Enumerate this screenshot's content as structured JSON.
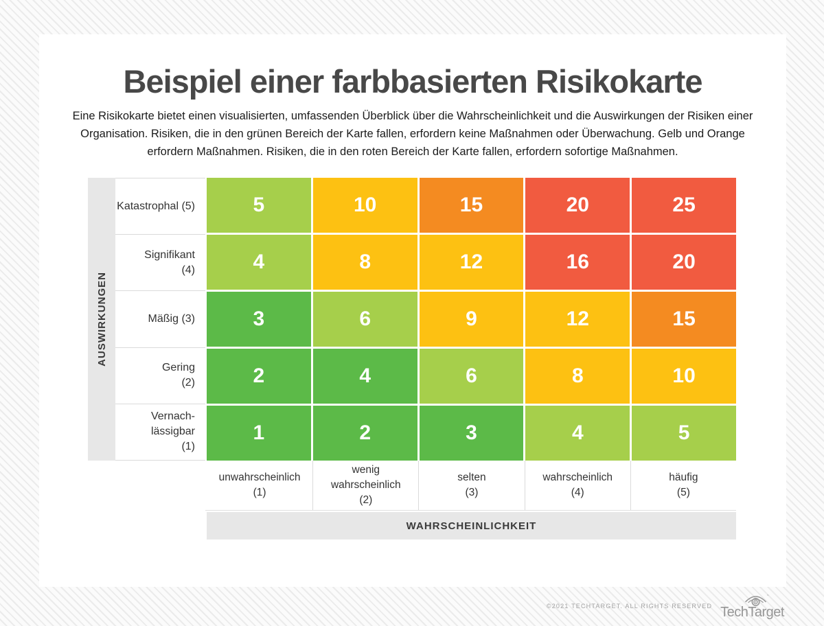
{
  "page": {
    "title": "Beispiel einer farbbasierten Risikokarte",
    "description": "Eine Risikokarte bietet einen visualisierten, umfassenden Überblick über die Wahrscheinlichkeit und die Auswirkungen der Risiken einer Organisation. Risiken, die in den grünen Bereich der Karte fallen, erfordern keine Maßnahmen oder Überwachung. Gelb und Orange erfordern Maßnahmen. Risiken, die in den roten Bereich der Karte fallen, erfordern sofortige Maßnahmen."
  },
  "chart_data": {
    "type": "heatmap",
    "title": "Beispiel einer farbbasierten Risikokarte",
    "x_axis_label": "WAHRSCHEINLICHKEIT",
    "y_axis_label": "AUSWIRKUNGEN",
    "columns": [
      {
        "label": "unwahrscheinlich (1)",
        "display": "unwahrscheinlich\n(1)"
      },
      {
        "label": "wenig wahrscheinlich (2)",
        "display": "wenig\nwahrscheinlich\n(2)"
      },
      {
        "label": "selten (3)",
        "display": "selten\n(3)"
      },
      {
        "label": "wahrscheinlich (4)",
        "display": "wahrscheinlich\n(4)"
      },
      {
        "label": "häufig (5)",
        "display": "häufig\n(5)"
      }
    ],
    "rows": [
      {
        "label": "Katastrophal (5)",
        "display": "Katastrophal (5)"
      },
      {
        "label": "Signifikant (4)",
        "display": "Signifikant\n(4)"
      },
      {
        "label": "Mäßig (3)",
        "display": "Mäßig (3)"
      },
      {
        "label": "Gering (2)",
        "display": "Gering\n(2)"
      },
      {
        "label": "Vernachlässigbar (1)",
        "display": "Vernach-\nlässigbar\n(1)"
      }
    ],
    "values": [
      [
        5,
        10,
        15,
        20,
        25
      ],
      [
        4,
        8,
        12,
        16,
        20
      ],
      [
        3,
        6,
        9,
        12,
        15
      ],
      [
        2,
        4,
        6,
        8,
        10
      ],
      [
        1,
        2,
        3,
        4,
        5
      ]
    ],
    "cell_colors": [
      [
        "light_green",
        "yellow",
        "orange",
        "red",
        "red"
      ],
      [
        "light_green",
        "yellow",
        "yellow",
        "red",
        "red"
      ],
      [
        "green",
        "light_green",
        "yellow",
        "yellow",
        "orange"
      ],
      [
        "green",
        "green",
        "light_green",
        "yellow",
        "yellow"
      ],
      [
        "green",
        "green",
        "green",
        "light_green",
        "light_green"
      ]
    ],
    "palette": {
      "green": "#5cba48",
      "light_green": "#a6cf4b",
      "yellow": "#fdc112",
      "orange": "#f48b21",
      "red": "#f15b40"
    },
    "layout": {
      "grid": "5x5",
      "legend": "none",
      "value_text_color": "#ffffff"
    }
  },
  "footer": {
    "copyright": "©2021 TECHTARGET. ALL RIGHTS RESERVED",
    "brand": "TechTarget"
  }
}
